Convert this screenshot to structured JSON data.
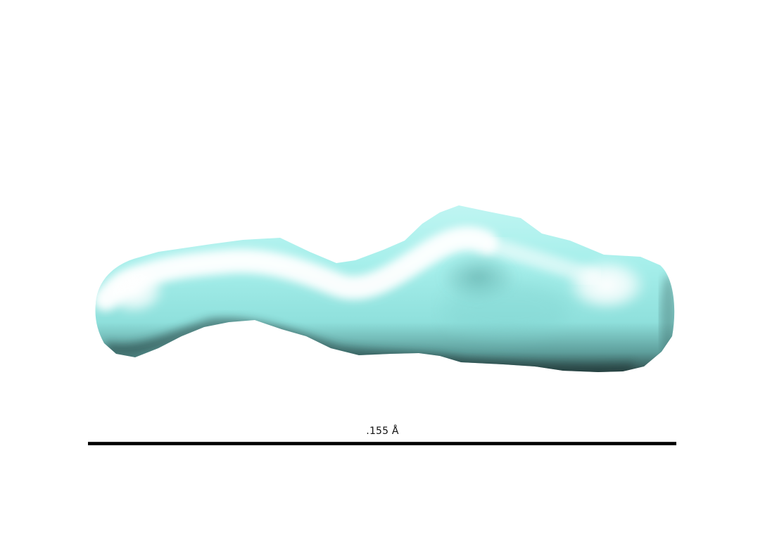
{
  "scale_bar": {
    "label": ".155 Å"
  },
  "colors": {
    "background": "#ffffff",
    "surface_base": "#8fe6e2",
    "surface_highlight": "#ffffff",
    "surface_shadow": "#2f4f4e",
    "scale_bar": "#000000"
  },
  "icons": {
    "molecule": "molecular-surface-render"
  }
}
